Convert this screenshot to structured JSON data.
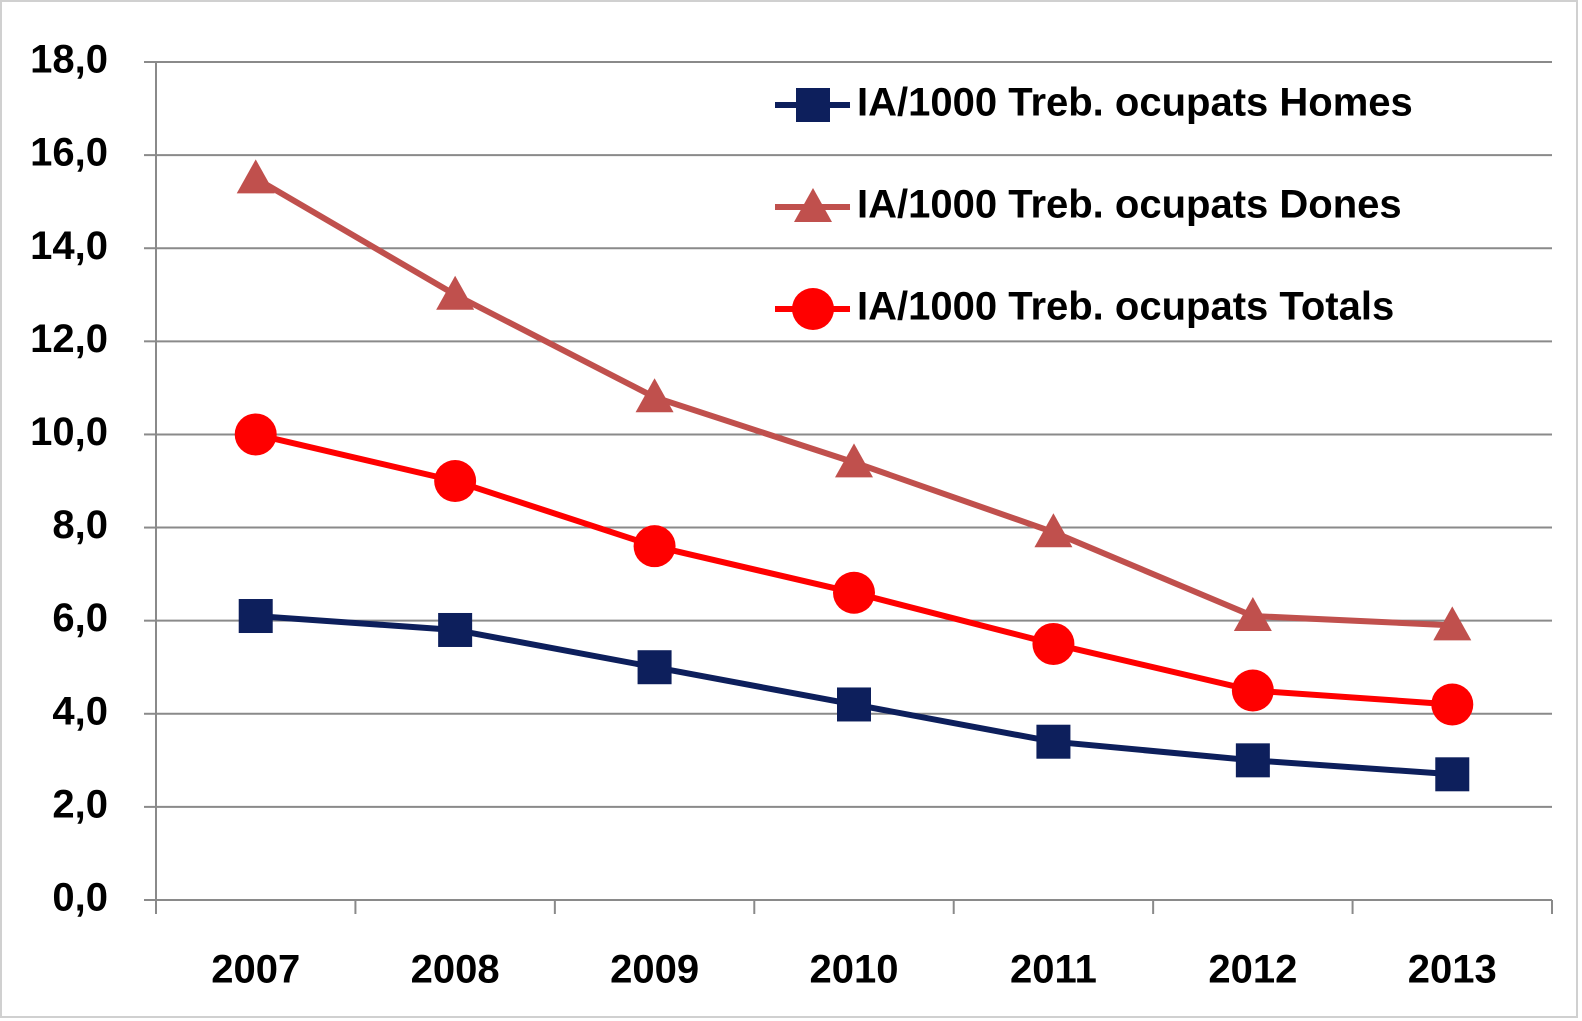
{
  "chart_data": {
    "type": "line",
    "categories": [
      "2007",
      "2008",
      "2009",
      "2010",
      "2011",
      "2012",
      "2013"
    ],
    "series": [
      {
        "name": "IA/1000 Treb. ocupats Homes",
        "color": "#0d1f5c",
        "marker": "square",
        "values": [
          6.1,
          5.8,
          5.0,
          4.2,
          3.4,
          3.0,
          2.7
        ]
      },
      {
        "name": "IA/1000 Treb. ocupats Dones",
        "color": "#c0504d",
        "marker": "triangle",
        "values": [
          15.5,
          13.0,
          10.8,
          9.4,
          7.9,
          6.1,
          5.9
        ]
      },
      {
        "name": "IA/1000 Treb. ocupats Totals",
        "color": "#ff0000",
        "marker": "circle",
        "values": [
          10.0,
          9.0,
          7.6,
          6.6,
          5.5,
          4.5,
          4.2
        ]
      }
    ],
    "ylim": [
      0,
      18
    ],
    "yticks": [
      {
        "value": 0,
        "label": "0,0"
      },
      {
        "value": 2,
        "label": "2,0"
      },
      {
        "value": 4,
        "label": "4,0"
      },
      {
        "value": 6,
        "label": "6,0"
      },
      {
        "value": 8,
        "label": "8,0"
      },
      {
        "value": 10,
        "label": "10,0"
      },
      {
        "value": 12,
        "label": "12,0"
      },
      {
        "value": 14,
        "label": "14,0"
      },
      {
        "value": 16,
        "label": "16,0"
      },
      {
        "value": 18,
        "label": "18,0"
      }
    ],
    "grid": true,
    "legend": "upper right"
  }
}
